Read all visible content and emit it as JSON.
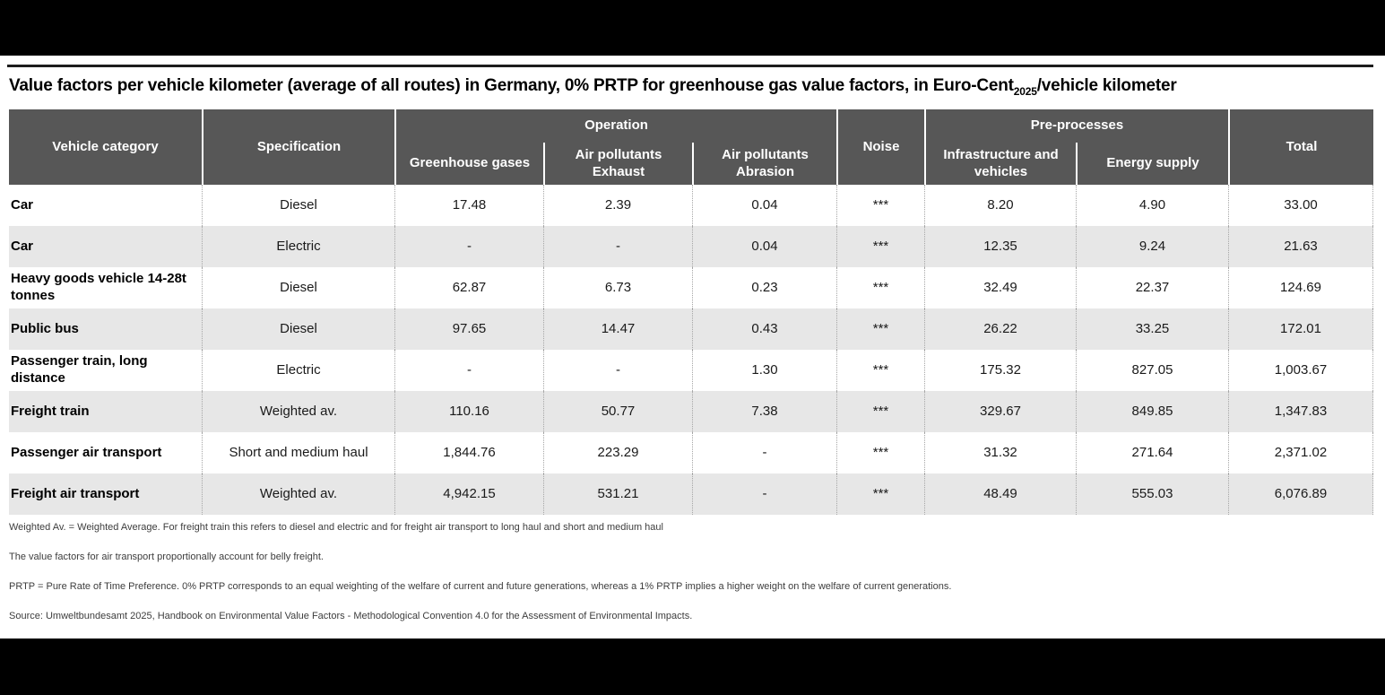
{
  "title": {
    "prefix": "Value factors per vehicle kilometer (average of all routes) in Germany, 0% PRTP for greenhouse gas value factors, in Euro-Cent",
    "subscript": "2025",
    "suffix": "/vehicle kilometer"
  },
  "chart_data": {
    "type": "table",
    "title": "Value factors per vehicle kilometer (average of all routes) in Germany, 0% PRTP for greenhouse gas value factors, in Euro-Cent2025/vehicle kilometer",
    "unit": "Euro-Cent2025/vehicle kilometer",
    "column_groups": [
      {
        "label": "Operation",
        "columns": [
          "Greenhouse gases",
          "Air pollutants Exhaust",
          "Air pollutants Abrasion"
        ]
      },
      {
        "label": "Pre-processes",
        "columns": [
          "Infrastructure and vehicles",
          "Energy supply"
        ]
      }
    ],
    "header": {
      "vehicle_category": "Vehicle category",
      "specification": "Specification",
      "operation_group": "Operation",
      "greenhouse_gases": "Greenhouse gases",
      "air_pollutants_exhaust": "Air pollutants Exhaust",
      "air_pollutants_abrasion": "Air pollutants Abrasion",
      "noise": "Noise",
      "preprocesses_group": "Pre-processes",
      "infrastructure_and_vehicles": "Infrastructure and vehicles",
      "energy_supply": "Energy supply",
      "total": "Total"
    },
    "rows": [
      {
        "category": "Car",
        "specification": "Diesel",
        "greenhouse_gases": "17.48",
        "air_pollutants_exhaust": "2.39",
        "air_pollutants_abrasion": "0.04",
        "noise": "***",
        "infrastructure_and_vehicles": "8.20",
        "energy_supply": "4.90",
        "total": "33.00"
      },
      {
        "category": "Car",
        "specification": "Electric",
        "greenhouse_gases": "-",
        "air_pollutants_exhaust": "-",
        "air_pollutants_abrasion": "0.04",
        "noise": "***",
        "infrastructure_and_vehicles": "12.35",
        "energy_supply": "9.24",
        "total": "21.63"
      },
      {
        "category": "Heavy goods vehicle 14-28t tonnes",
        "specification": "Diesel",
        "greenhouse_gases": "62.87",
        "air_pollutants_exhaust": "6.73",
        "air_pollutants_abrasion": "0.23",
        "noise": "***",
        "infrastructure_and_vehicles": "32.49",
        "energy_supply": "22.37",
        "total": "124.69"
      },
      {
        "category": "Public bus",
        "specification": "Diesel",
        "greenhouse_gases": "97.65",
        "air_pollutants_exhaust": "14.47",
        "air_pollutants_abrasion": "0.43",
        "noise": "***",
        "infrastructure_and_vehicles": "26.22",
        "energy_supply": "33.25",
        "total": "172.01"
      },
      {
        "category": "Passenger train, long distance",
        "specification": "Electric",
        "greenhouse_gases": "-",
        "air_pollutants_exhaust": "-",
        "air_pollutants_abrasion": "1.30",
        "noise": "***",
        "infrastructure_and_vehicles": "175.32",
        "energy_supply": "827.05",
        "total": "1,003.67"
      },
      {
        "category": "Freight train",
        "specification": "Weighted av.",
        "greenhouse_gases": "110.16",
        "air_pollutants_exhaust": "50.77",
        "air_pollutants_abrasion": "7.38",
        "noise": "***",
        "infrastructure_and_vehicles": "329.67",
        "energy_supply": "849.85",
        "total": "1,347.83"
      },
      {
        "category": "Passenger air transport",
        "specification": "Short and medium haul",
        "greenhouse_gases": "1,844.76",
        "air_pollutants_exhaust": "223.29",
        "air_pollutants_abrasion": "-",
        "noise": "***",
        "infrastructure_and_vehicles": "31.32",
        "energy_supply": "271.64",
        "total": "2,371.02"
      },
      {
        "category": "Freight air transport",
        "specification": "Weighted av.",
        "greenhouse_gases": "4,942.15",
        "air_pollutants_exhaust": "531.21",
        "air_pollutants_abrasion": "-",
        "noise": "***",
        "infrastructure_and_vehicles": "48.49",
        "energy_supply": "555.03",
        "total": "6,076.89"
      }
    ],
    "notes": [
      "Weighted Av. = Weighted Average. For freight train this refers to diesel and electric and for freight air transport to long haul and short and medium haul",
      "The value factors for air transport proportionally account for belly freight.",
      "PRTP = Pure Rate of Time Preference. 0% PRTP corresponds to an equal weighting of the welfare of current  and future generations, whereas a 1% PRTP implies a higher weight on the welfare of current generations.",
      "Source: Umweltbundesamt 2025, Handbook on Environmental Value Factors - Methodological Convention 4.0 for the Assessment of Environmental Impacts."
    ]
  },
  "colors": {
    "letterbox": "#000000",
    "header_bg": "#575757",
    "header_text": "#ffffff",
    "row_alt_bg": "#e7e7e7",
    "body_text": "#1a1a1a",
    "note_text": "#3d3d3d",
    "divider": "#1c1c1c"
  }
}
